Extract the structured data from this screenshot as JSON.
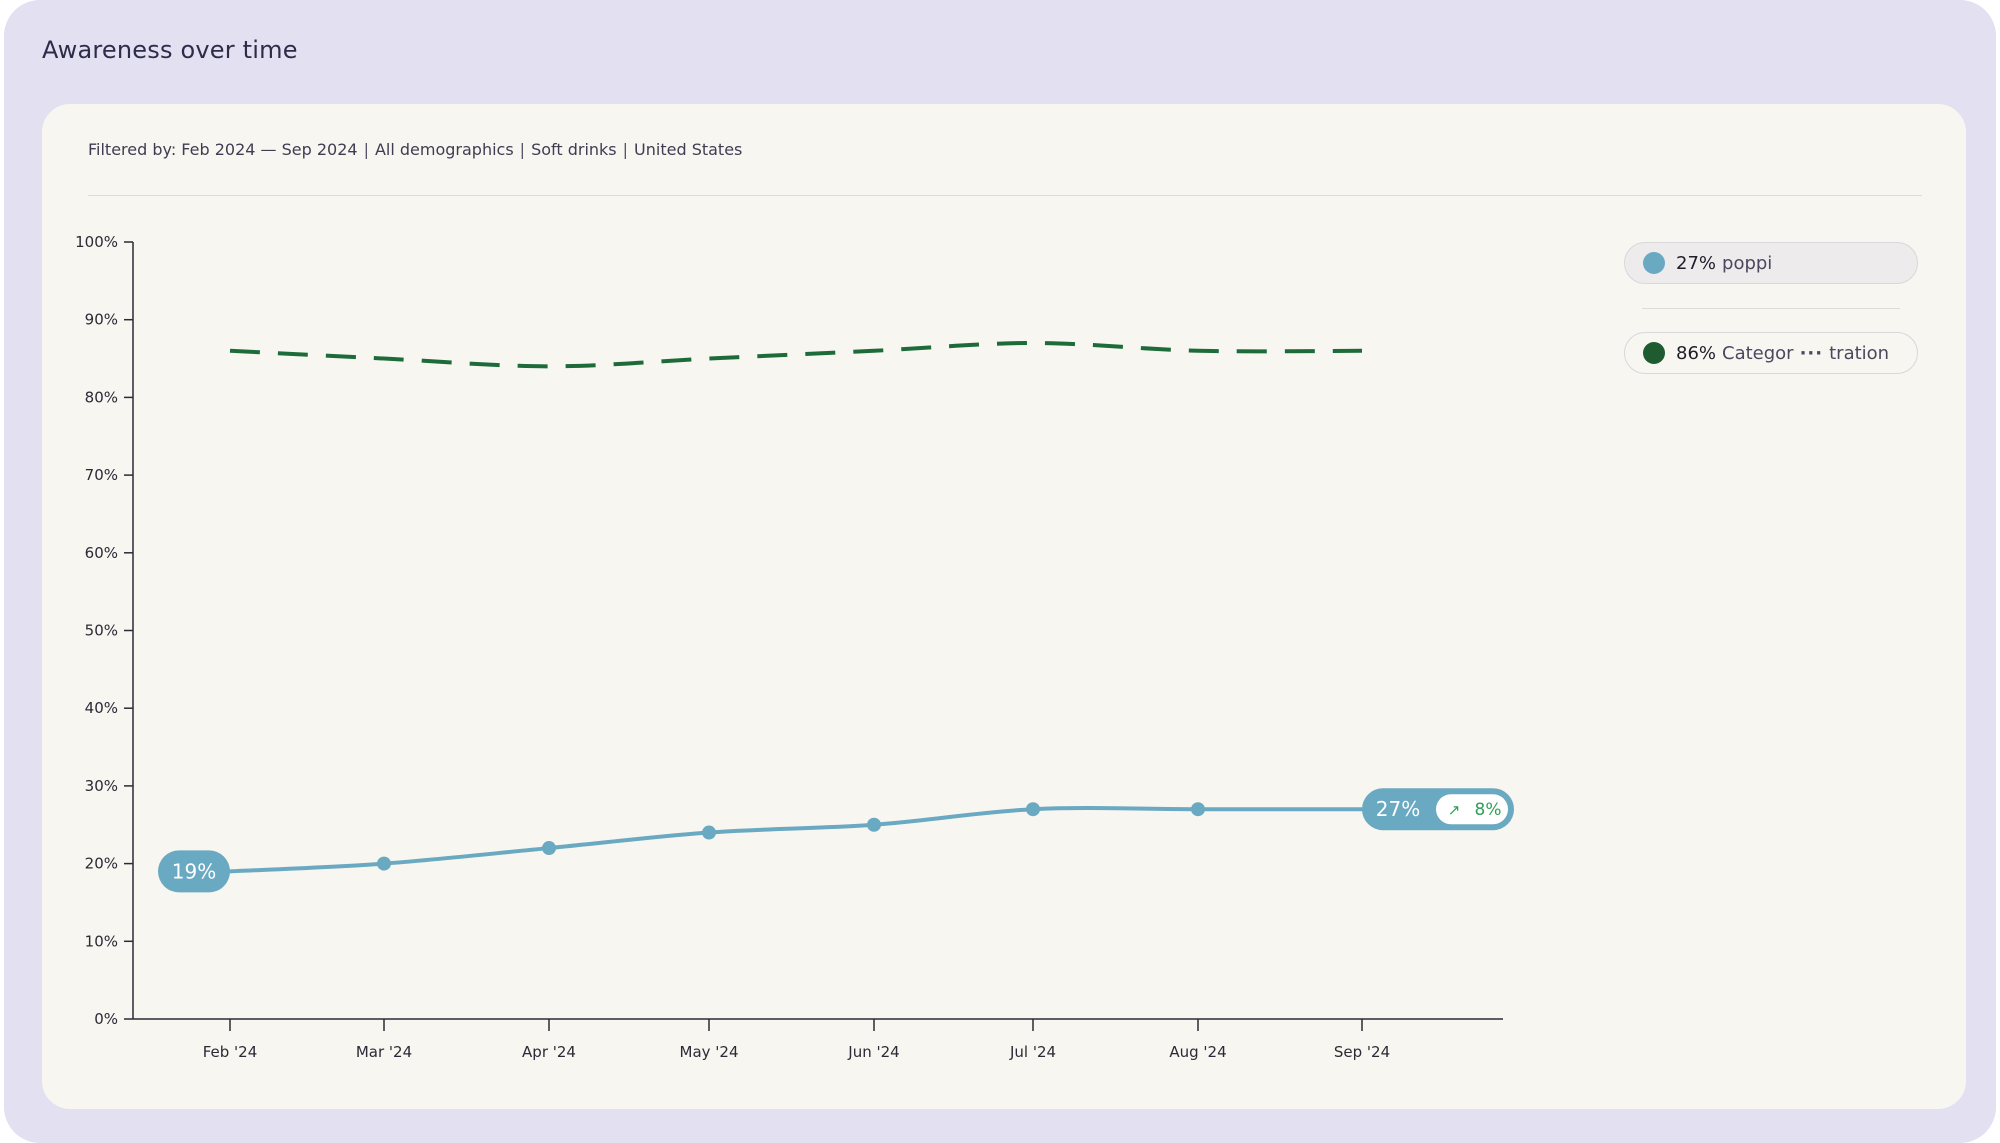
{
  "page": {
    "title": "Awareness over time",
    "filter_text": "Filtered by: Feb 2024 — Sep 2024",
    "filters": [
      "All demographics",
      "Soft drinks",
      "United States"
    ]
  },
  "legend": [
    {
      "value": "27%",
      "name": "poppi",
      "color": "#6aa9c2"
    },
    {
      "value": "86%",
      "name_start": "Categor",
      "ellipsis": "···",
      "name_end": "tration",
      "color": "#1e5b31"
    }
  ],
  "chart_data": {
    "type": "line",
    "categories": [
      "Feb '24",
      "Mar '24",
      "Apr '24",
      "May '24",
      "Jun '24",
      "Jul '24",
      "Aug '24",
      "Sep '24"
    ],
    "ylim": [
      0,
      100
    ],
    "yticks": [
      "0%",
      "10%",
      "20%",
      "30%",
      "40%",
      "50%",
      "60%",
      "70%",
      "80%",
      "90%",
      "100%"
    ],
    "series": [
      {
        "name": "poppi",
        "values": [
          19,
          20,
          22,
          24,
          25,
          27,
          27,
          27
        ],
        "color": "#6aa9c2",
        "style": "solid",
        "markers": true
      },
      {
        "name": "Categor··· tration",
        "values": [
          86,
          85,
          84,
          85,
          86,
          87,
          86,
          86
        ],
        "color": "#1e6b3a",
        "style": "dashed",
        "markers": false
      }
    ],
    "annotations": {
      "start_label": "19%",
      "end_label": "27%",
      "change_label": "8%",
      "change_arrow": "↗",
      "change_color": "#2e9e57"
    }
  }
}
